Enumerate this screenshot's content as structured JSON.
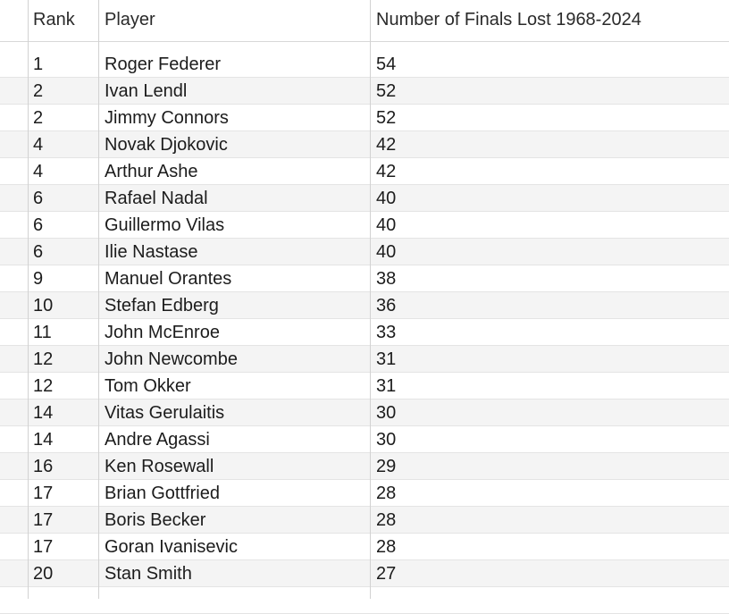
{
  "table": {
    "columns": [
      "Rank",
      "Player",
      "Number of Finals Lost 1968-2024"
    ],
    "rows": [
      [
        "1",
        "Roger Federer",
        "54"
      ],
      [
        "2",
        "Ivan Lendl",
        "52"
      ],
      [
        "2",
        "Jimmy Connors",
        "52"
      ],
      [
        "4",
        "Novak Djokovic",
        "42"
      ],
      [
        "4",
        "Arthur Ashe",
        "42"
      ],
      [
        "6",
        "Rafael Nadal",
        "40"
      ],
      [
        "6",
        "Guillermo Vilas",
        "40"
      ],
      [
        "6",
        "Ilie Nastase",
        "40"
      ],
      [
        "9",
        "Manuel Orantes",
        "38"
      ],
      [
        "10",
        "Stefan Edberg",
        "36"
      ],
      [
        "11",
        "John McEnroe",
        "33"
      ],
      [
        "12",
        "John Newcombe",
        "31"
      ],
      [
        "12",
        "Tom Okker",
        "31"
      ],
      [
        "14",
        "Vitas Gerulaitis",
        "30"
      ],
      [
        "14",
        "Andre Agassi",
        "30"
      ],
      [
        "16",
        "Ken Rosewall",
        "29"
      ],
      [
        "17",
        "Brian Gottfried",
        "28"
      ],
      [
        "17",
        "Boris Becker",
        "28"
      ],
      [
        "17",
        "Goran Ivanisevic",
        "28"
      ],
      [
        "20",
        "Stan Smith",
        "27"
      ]
    ]
  }
}
